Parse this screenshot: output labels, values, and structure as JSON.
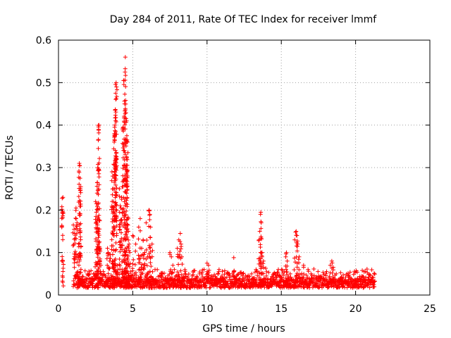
{
  "chart_data": {
    "type": "scatter",
    "title": "Day 284 of 2011, Rate Of TEC Index for receiver lmmf",
    "xlabel": "GPS time / hours",
    "ylabel": "ROTI / TECUs",
    "xlim": [
      0,
      25
    ],
    "ylim": [
      0,
      0.6
    ],
    "xticks": [
      0,
      5,
      10,
      15,
      20,
      25
    ],
    "yticks": [
      0,
      0.1,
      0.2,
      0.3,
      0.4,
      0.5,
      0.6
    ],
    "grid": true,
    "marker": "+",
    "color": "#ff0000",
    "series": [
      {
        "name": "ROTI",
        "points": [
          [
            0.25,
            0.228
          ],
          [
            0.3,
            0.23
          ],
          [
            0.28,
            0.197
          ],
          [
            1.0,
            0.165
          ],
          [
            1.05,
            0.155
          ],
          [
            1.1,
            0.145
          ],
          [
            1.12,
            0.133
          ],
          [
            1.18,
            0.205
          ],
          [
            1.22,
            0.162
          ],
          [
            1.25,
            0.17
          ],
          [
            1.3,
            0.055
          ],
          [
            1.32,
            0.045
          ],
          [
            1.35,
            0.12
          ],
          [
            1.4,
            0.31
          ],
          [
            1.42,
            0.305
          ],
          [
            1.45,
            0.275
          ],
          [
            1.5,
            0.255
          ],
          [
            1.48,
            0.25
          ],
          [
            2.5,
            0.22
          ],
          [
            2.55,
            0.215
          ],
          [
            2.55,
            0.195
          ],
          [
            2.6,
            0.24
          ],
          [
            2.62,
            0.265
          ],
          [
            2.65,
            0.3
          ],
          [
            2.68,
            0.345
          ],
          [
            2.7,
            0.39
          ],
          [
            2.72,
            0.4
          ],
          [
            2.75,
            0.175
          ],
          [
            2.8,
            0.11
          ],
          [
            2.8,
            0.085
          ],
          [
            2.85,
            0.07
          ],
          [
            3.3,
            0.11
          ],
          [
            3.35,
            0.1
          ],
          [
            3.45,
            0.08
          ],
          [
            3.5,
            0.095
          ],
          [
            3.6,
            0.29
          ],
          [
            3.65,
            0.28
          ],
          [
            3.68,
            0.25
          ],
          [
            3.7,
            0.22
          ],
          [
            3.75,
            0.36
          ],
          [
            3.78,
            0.395
          ],
          [
            3.8,
            0.4
          ],
          [
            3.82,
            0.435
          ],
          [
            3.85,
            0.475
          ],
          [
            3.88,
            0.5
          ],
          [
            3.9,
            0.49
          ],
          [
            3.95,
            0.07
          ],
          [
            4.0,
            0.06
          ],
          [
            4.1,
            0.25
          ],
          [
            4.15,
            0.21
          ],
          [
            4.2,
            0.205
          ],
          [
            4.25,
            0.23
          ],
          [
            4.3,
            0.255
          ],
          [
            4.35,
            0.395
          ],
          [
            4.4,
            0.505
          ],
          [
            4.45,
            0.45
          ],
          [
            4.48,
            0.525
          ],
          [
            4.5,
            0.56
          ],
          [
            4.52,
            0.3
          ],
          [
            4.55,
            0.415
          ],
          [
            4.58,
            0.41
          ],
          [
            4.6,
            0.375
          ],
          [
            4.62,
            0.365
          ],
          [
            4.65,
            0.36
          ],
          [
            4.7,
            0.18
          ],
          [
            4.7,
            0.15
          ],
          [
            4.75,
            0.12
          ],
          [
            4.8,
            0.1
          ],
          [
            5.0,
            0.14
          ],
          [
            5.2,
            0.12
          ],
          [
            5.4,
            0.16
          ],
          [
            5.5,
            0.18
          ],
          [
            5.6,
            0.11
          ],
          [
            5.7,
            0.13
          ],
          [
            5.8,
            0.1
          ],
          [
            5.9,
            0.17
          ],
          [
            6.0,
            0.09
          ],
          [
            6.1,
            0.2
          ],
          [
            6.15,
            0.19
          ],
          [
            6.2,
            0.16
          ],
          [
            6.3,
            0.12
          ],
          [
            6.5,
            0.06
          ],
          [
            7.0,
            0.05
          ],
          [
            7.2,
            0.04
          ],
          [
            7.5,
            0.1
          ],
          [
            7.6,
            0.09
          ],
          [
            7.7,
            0.07
          ],
          [
            7.8,
            0.06
          ],
          [
            8.0,
            0.11
          ],
          [
            8.1,
            0.13
          ],
          [
            8.2,
            0.145
          ],
          [
            8.25,
            0.12
          ],
          [
            8.3,
            0.09
          ],
          [
            8.5,
            0.05
          ],
          [
            9.0,
            0.045
          ],
          [
            9.5,
            0.05
          ],
          [
            9.8,
            0.06
          ],
          [
            10.0,
            0.075
          ],
          [
            10.1,
            0.07
          ],
          [
            10.3,
            0.045
          ],
          [
            10.6,
            0.04
          ],
          [
            11.0,
            0.045
          ],
          [
            11.2,
            0.04
          ],
          [
            11.5,
            0.05
          ],
          [
            11.8,
            0.088
          ],
          [
            12.0,
            0.045
          ],
          [
            12.3,
            0.05
          ],
          [
            12.6,
            0.045
          ],
          [
            13.0,
            0.05
          ],
          [
            13.3,
            0.06
          ],
          [
            13.5,
            0.13
          ],
          [
            13.55,
            0.15
          ],
          [
            13.6,
            0.19
          ],
          [
            13.62,
            0.195
          ],
          [
            13.65,
            0.17
          ],
          [
            13.7,
            0.1
          ],
          [
            13.8,
            0.08
          ],
          [
            14.0,
            0.045
          ],
          [
            14.5,
            0.05
          ],
          [
            14.8,
            0.06
          ],
          [
            15.0,
            0.04
          ],
          [
            15.2,
            0.055
          ],
          [
            15.3,
            0.09
          ],
          [
            15.35,
            0.1
          ],
          [
            15.4,
            0.08
          ],
          [
            15.6,
            0.05
          ],
          [
            15.9,
            0.13
          ],
          [
            16.0,
            0.15
          ],
          [
            16.05,
            0.14
          ],
          [
            16.1,
            0.12
          ],
          [
            16.2,
            0.09
          ],
          [
            16.5,
            0.07
          ],
          [
            16.8,
            0.06
          ],
          [
            17.0,
            0.05
          ],
          [
            17.5,
            0.04
          ],
          [
            18.0,
            0.05
          ],
          [
            18.3,
            0.07
          ],
          [
            18.4,
            0.08
          ],
          [
            18.5,
            0.065
          ],
          [
            18.7,
            0.05
          ],
          [
            19.0,
            0.04
          ],
          [
            19.5,
            0.045
          ],
          [
            20.0,
            0.035
          ],
          [
            20.5,
            0.03
          ],
          [
            21.0,
            0.032
          ],
          [
            21.2,
            0.03
          ]
        ]
      }
    ],
    "band": {
      "x_start": 1.25,
      "x_end": 21.3,
      "baseline": 0.017,
      "spread": 0.035
    }
  }
}
